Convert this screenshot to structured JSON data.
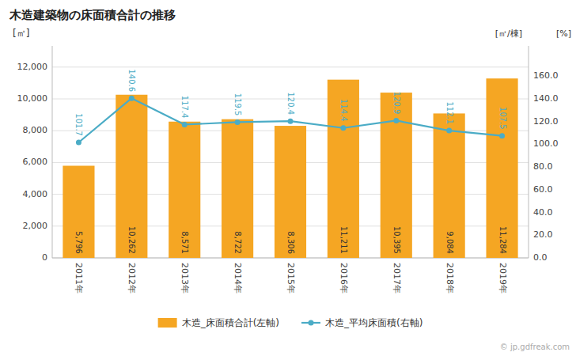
{
  "chart_data": {
    "type": "bar",
    "title": "木造建築物の床面積合計の推移",
    "categories": [
      "2011年",
      "2012年",
      "2013年",
      "2014年",
      "2015年",
      "2016年",
      "2017年",
      "2018年",
      "2019年"
    ],
    "series": [
      {
        "name": "木造_床面積合計(左軸)",
        "type": "bar",
        "color": "#F5A623",
        "values": [
          5796,
          10262,
          8571,
          8722,
          8306,
          11211,
          10395,
          9084,
          11284
        ],
        "value_labels": [
          "5,796",
          "10,262",
          "8,571",
          "8,722",
          "8,306",
          "11,211",
          "10,395",
          "9,084",
          "11,284"
        ]
      },
      {
        "name": "木造_平均床面積(右軸)",
        "type": "line",
        "axis": "y2",
        "color": "#4BACC6",
        "marker": "circle",
        "values": [
          101.7,
          140.6,
          117.4,
          119.5,
          120.4,
          114.4,
          120.9,
          112.1,
          107.5
        ]
      }
    ],
    "ylabel": "[㎡]",
    "y2label": "[㎡/棟]",
    "annotations": [
      "[%]",
      "© jp.gdfreak.com"
    ],
    "ylim": [
      0,
      13334
    ],
    "yticks": [
      0,
      {
        "value": 2000,
        "label": "2,000"
      },
      {
        "value": 4000,
        "label": "4,000"
      },
      {
        "value": 6000,
        "label": "6,000"
      },
      {
        "value": 8000,
        "label": "8,000"
      },
      {
        "value": 10000,
        "label": "10,000"
      },
      {
        "value": 12000,
        "label": "12,000"
      }
    ],
    "y2lim": [
      0,
      186.67
    ],
    "y2ticks": [
      {
        "value": 0.0,
        "label": "0.0"
      },
      {
        "value": 20.0,
        "label": "20.0"
      },
      {
        "value": 40.0,
        "label": "40.0"
      },
      {
        "value": 60.0,
        "label": "60.0"
      },
      {
        "value": 80.0,
        "label": "80.0"
      },
      {
        "value": 100.0,
        "label": "100.0"
      },
      {
        "value": 120.0,
        "label": "120.0"
      },
      {
        "value": 140.0,
        "label": "140.0"
      },
      {
        "value": 160.0,
        "label": "160.0"
      }
    ],
    "grid": true,
    "legend": "bottom",
    "data_labels": true
  }
}
